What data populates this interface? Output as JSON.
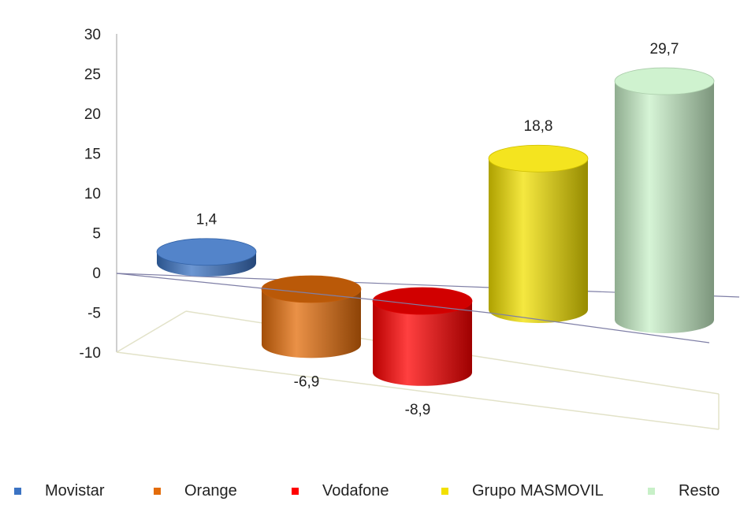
{
  "chart_data": {
    "type": "bar",
    "style": "3d-cylinder",
    "categories": [
      "Movistar",
      "Orange",
      "Vodafone",
      "Grupo MASMOVIL",
      "Resto"
    ],
    "values": [
      1.4,
      -6.9,
      -8.9,
      18.8,
      29.7
    ],
    "data_labels": [
      "1,4",
      "-6,9",
      "-8,9",
      "18,8",
      "29,7"
    ],
    "colors": [
      "#3b73c3",
      "#e36c0a",
      "#ff0000",
      "#f2e000",
      "#c8f0c8"
    ],
    "ylim": [
      -10,
      30
    ],
    "yticks": [
      30,
      25,
      20,
      15,
      10,
      5,
      0,
      -5,
      -10
    ],
    "grid": false,
    "legend_position": "bottom",
    "title": "",
    "xlabel": "",
    "ylabel": ""
  }
}
